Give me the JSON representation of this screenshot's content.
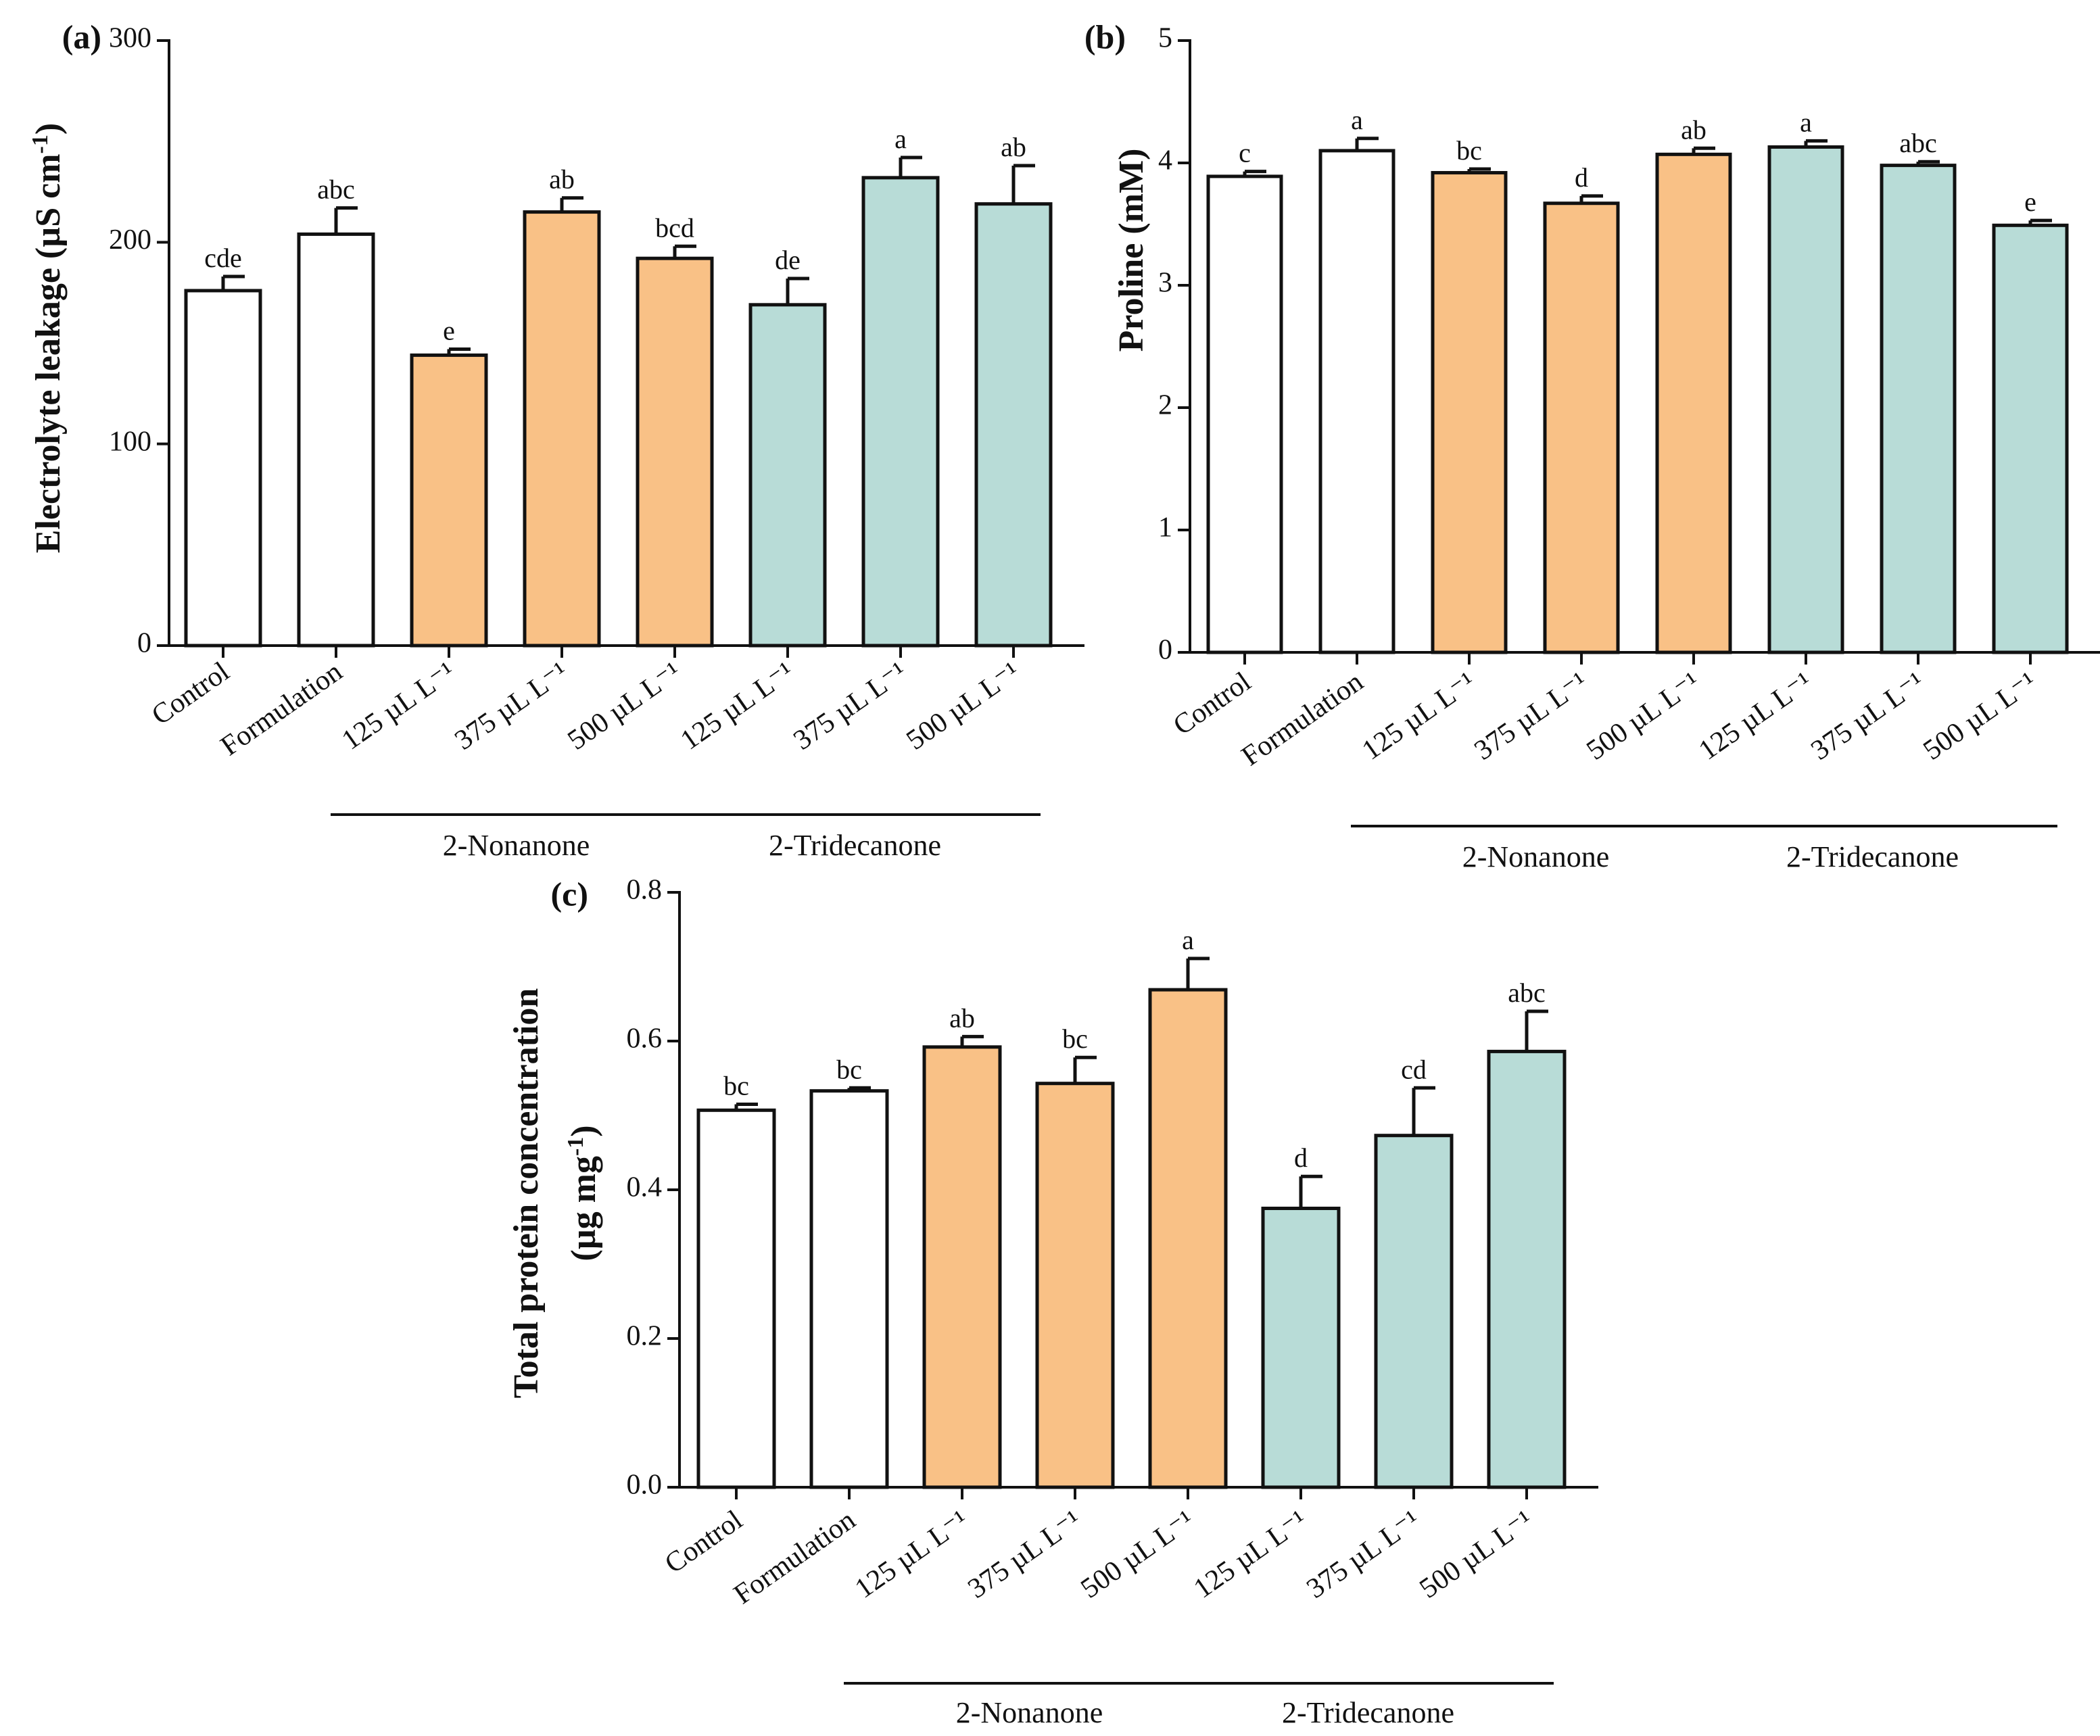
{
  "colors": {
    "white": "#ffffff",
    "orange": "#f9c186",
    "teal": "#b8dcd7",
    "stroke": "#111111"
  },
  "chart_data": [
    {
      "type": "bar",
      "panel_label": "(a)",
      "ylabel": "Electrolyte leakage (µS cm",
      "ylabel_sup": "-1",
      "ylabel_close": ")",
      "ylim": [
        0,
        300
      ],
      "yticks": [
        0,
        100,
        200,
        300
      ],
      "ytick_labels": [
        "0",
        "100",
        "200",
        "300"
      ],
      "categories": [
        "Control",
        "Formulation",
        "125  µL L⁻¹",
        "375  µL L⁻¹",
        "500  µL L⁻¹",
        "125  µL L⁻¹",
        "375  µL L⁻¹",
        "500  µL L⁻¹"
      ],
      "values": [
        176,
        204,
        144,
        215,
        192,
        169,
        232,
        219
      ],
      "errors": [
        7,
        13,
        3,
        7,
        6,
        13,
        10,
        19
      ],
      "letters": [
        "cde",
        "abc",
        "e",
        "ab",
        "bcd",
        "de",
        "a",
        "ab"
      ],
      "fill_keys": [
        "white",
        "white",
        "orange",
        "orange",
        "orange",
        "teal",
        "teal",
        "teal"
      ],
      "groups": [
        {
          "label": "2-Nonanone",
          "from": 2,
          "to": 4
        },
        {
          "label": "2-Tridecanone",
          "from": 5,
          "to": 7
        }
      ]
    },
    {
      "type": "bar",
      "panel_label": "(b)",
      "ylabel": "Proline (mM)",
      "ylim": [
        0,
        5
      ],
      "yticks": [
        0,
        1,
        2,
        3,
        4,
        5
      ],
      "ytick_labels": [
        "0",
        "1",
        "2",
        "3",
        "4",
        "5"
      ],
      "categories": [
        "Control",
        "Formulation",
        "125  µL L⁻¹",
        "375  µL L⁻¹",
        "500  µL L⁻¹",
        "125  µL L⁻¹",
        "375  µL L⁻¹",
        "500  µL L⁻¹"
      ],
      "values": [
        3.89,
        4.1,
        3.92,
        3.67,
        4.07,
        4.13,
        3.98,
        3.49
      ],
      "errors": [
        0.04,
        0.1,
        0.03,
        0.06,
        0.05,
        0.05,
        0.03,
        0.04
      ],
      "letters": [
        "c",
        "a",
        "bc",
        "d",
        "ab",
        "a",
        "abc",
        "e"
      ],
      "fill_keys": [
        "white",
        "white",
        "orange",
        "orange",
        "orange",
        "teal",
        "teal",
        "teal"
      ],
      "groups": [
        {
          "label": "2-Nonanone",
          "from": 2,
          "to": 4
        },
        {
          "label": "2-Tridecanone",
          "from": 5,
          "to": 7
        }
      ]
    },
    {
      "type": "bar",
      "panel_label": "(c)",
      "ylabel": "Total protein concentration",
      "ylabel2": "(µg mg",
      "ylabel2_sup": "-1",
      "ylabel2_close": ")",
      "ylim": [
        0,
        0.8
      ],
      "yticks": [
        0,
        0.2,
        0.4,
        0.6,
        0.8
      ],
      "ytick_labels": [
        "0.0",
        "0.2",
        "0.4",
        "0.6",
        "0.8"
      ],
      "categories": [
        "Control",
        "Formulation",
        "125  µL L⁻¹",
        "375  µL L⁻¹",
        "500  µL L⁻¹",
        "125  µL L⁻¹",
        "375  µL L⁻¹",
        "500  µL L⁻¹"
      ],
      "values": [
        0.507,
        0.533,
        0.592,
        0.543,
        0.669,
        0.375,
        0.473,
        0.586
      ],
      "errors": [
        0.008,
        0.004,
        0.014,
        0.035,
        0.042,
        0.043,
        0.064,
        0.054
      ],
      "letters": [
        "bc",
        "bc",
        "ab",
        "bc",
        "a",
        "d",
        "cd",
        "abc"
      ],
      "fill_keys": [
        "white",
        "white",
        "orange",
        "orange",
        "orange",
        "teal",
        "teal",
        "teal"
      ],
      "groups": [
        {
          "label": "2-Nonanone",
          "from": 2,
          "to": 4
        },
        {
          "label": "2-Tridecanone",
          "from": 5,
          "to": 7
        }
      ]
    }
  ]
}
